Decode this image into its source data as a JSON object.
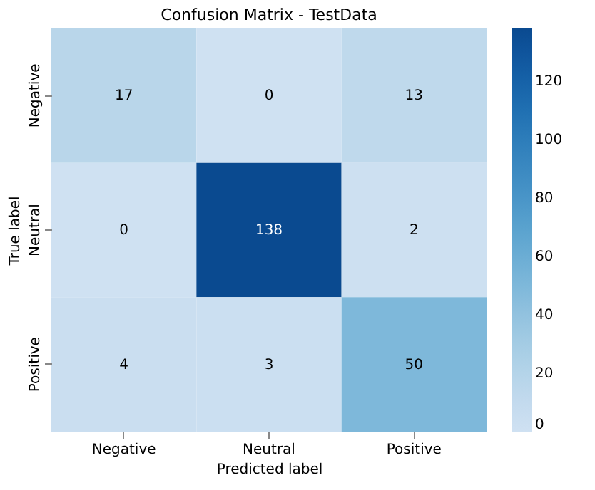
{
  "chart_data": {
    "type": "heatmap",
    "title": "Confusion Matrix - TestData",
    "xlabel": "Predicted label",
    "ylabel": "True label",
    "categories": [
      "Negative",
      "Neutral",
      "Positive"
    ],
    "y_categories": [
      "Negative",
      "Neutral",
      "Positive"
    ],
    "cells": [
      [
        17,
        0,
        13
      ],
      [
        0,
        138,
        2
      ],
      [
        4,
        3,
        50
      ]
    ],
    "data_labels": true,
    "clim": [
      0,
      138
    ],
    "cticks": [
      0,
      20,
      40,
      60,
      80,
      100,
      120
    ]
  }
}
